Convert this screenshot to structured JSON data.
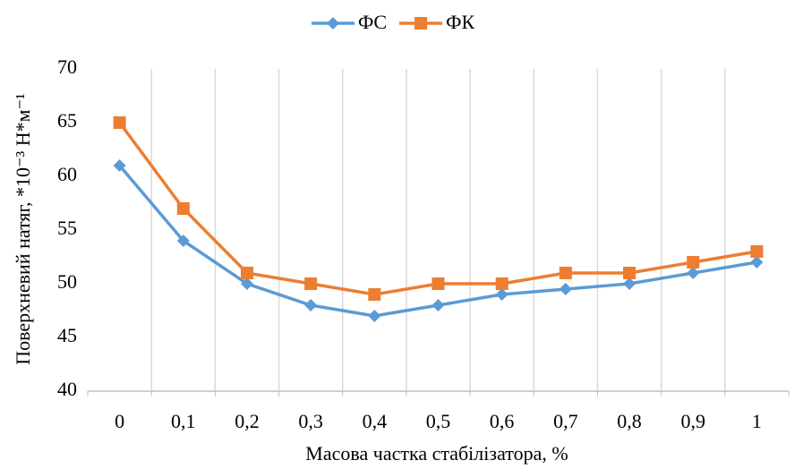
{
  "chart_data": {
    "type": "line",
    "x_label": "Масова частка стабілізатора, %",
    "y_label": "Поверхневий натяг, *10⁻³ Н*м⁻¹",
    "categories": [
      "0",
      "0,1",
      "0,2",
      "0,3",
      "0,4",
      "0,5",
      "0,6",
      "0,7",
      "0,8",
      "0,9",
      "1"
    ],
    "series": [
      {
        "name": "ФС",
        "color": "#5b9bd5",
        "marker": "diamond",
        "values": [
          61,
          54,
          50,
          48,
          47,
          48,
          49,
          49.5,
          50,
          51,
          52
        ]
      },
      {
        "name": "ФК",
        "color": "#ed7d31",
        "marker": "square",
        "values": [
          65,
          57,
          51,
          50,
          49,
          50,
          50,
          51,
          51,
          52,
          53
        ]
      }
    ],
    "ylim": [
      40,
      70
    ],
    "yticks": [
      40,
      45,
      50,
      55,
      60,
      65,
      70
    ],
    "grid": "x",
    "legend": "top"
  }
}
